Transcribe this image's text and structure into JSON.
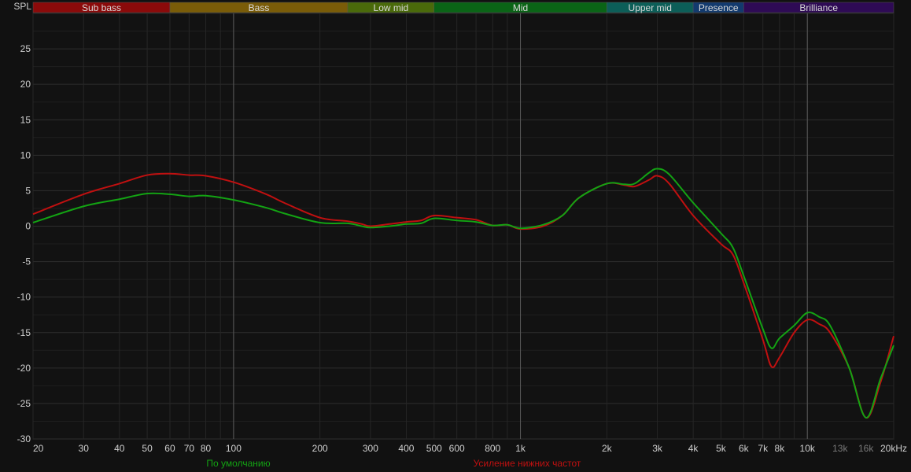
{
  "chart_data": {
    "type": "line",
    "ylabel": "SPL",
    "xscale": "log",
    "xlim": [
      20,
      20000
    ],
    "ylim": [
      -30,
      30
    ],
    "grid": true,
    "x_ticks": [
      {
        "v": 20,
        "label": "20"
      },
      {
        "v": 30,
        "label": "30"
      },
      {
        "v": 40,
        "label": "40"
      },
      {
        "v": 50,
        "label": "50"
      },
      {
        "v": 60,
        "label": "60"
      },
      {
        "v": 70,
        "label": "70"
      },
      {
        "v": 80,
        "label": "80"
      },
      {
        "v": 100,
        "label": "100"
      },
      {
        "v": 200,
        "label": "200"
      },
      {
        "v": 300,
        "label": "300"
      },
      {
        "v": 400,
        "label": "400"
      },
      {
        "v": 500,
        "label": "500"
      },
      {
        "v": 600,
        "label": "600"
      },
      {
        "v": 800,
        "label": "800"
      },
      {
        "v": 1000,
        "label": "1k"
      },
      {
        "v": 2000,
        "label": "2k"
      },
      {
        "v": 3000,
        "label": "3k"
      },
      {
        "v": 4000,
        "label": "4k"
      },
      {
        "v": 5000,
        "label": "5k"
      },
      {
        "v": 6000,
        "label": "6k"
      },
      {
        "v": 7000,
        "label": "7k"
      },
      {
        "v": 8000,
        "label": "8k"
      },
      {
        "v": 10000,
        "label": "10k"
      },
      {
        "v": 13000,
        "label": "13k",
        "dim": true
      },
      {
        "v": 16000,
        "label": "16k",
        "dim": true
      },
      {
        "v": 20000,
        "label": "20kHz"
      }
    ],
    "y_ticks": [
      25,
      20,
      15,
      10,
      5,
      0,
      -5,
      -10,
      -15,
      -20,
      -25,
      -30
    ],
    "bands": [
      {
        "label": "Sub bass",
        "from": 20,
        "to": 60,
        "color": "#8b0a0a"
      },
      {
        "label": "Bass",
        "from": 60,
        "to": 250,
        "color": "#7a5c08"
      },
      {
        "label": "Low mid",
        "from": 250,
        "to": 500,
        "color": "#4a6a0a"
      },
      {
        "label": "Mid",
        "from": 500,
        "to": 2000,
        "color": "#0a6416"
      },
      {
        "label": "Upper mid",
        "from": 2000,
        "to": 4000,
        "color": "#0c5e58"
      },
      {
        "label": "Presence",
        "from": 4000,
        "to": 6000,
        "color": "#123a6e"
      },
      {
        "label": "Brilliance",
        "from": 6000,
        "to": 20000,
        "color": "#2e0a55"
      }
    ],
    "x": [
      20,
      30,
      40,
      50,
      60,
      70,
      80,
      100,
      130,
      150,
      200,
      250,
      280,
      300,
      350,
      400,
      450,
      500,
      600,
      700,
      800,
      900,
      1000,
      1200,
      1400,
      1600,
      2000,
      2300,
      2500,
      2800,
      3000,
      3300,
      4000,
      5000,
      5500,
      6000,
      7000,
      7500,
      8000,
      9000,
      10000,
      11000,
      12000,
      14000,
      16000,
      18000,
      20000
    ],
    "series": [
      {
        "name": "По умолчанию",
        "color": "#13a313",
        "values": [
          0.5,
          2.8,
          3.8,
          4.6,
          4.5,
          4.2,
          4.3,
          3.7,
          2.6,
          1.8,
          0.5,
          0.4,
          0.0,
          -0.2,
          0.0,
          0.3,
          0.4,
          1.1,
          0.8,
          0.6,
          0.1,
          0.2,
          -0.3,
          0.2,
          1.5,
          4.0,
          6.0,
          5.9,
          6.0,
          7.5,
          8.1,
          7.3,
          3.3,
          -1.0,
          -3.0,
          -7.0,
          -14.5,
          -17.2,
          -15.8,
          -14.0,
          -12.2,
          -12.8,
          -14.0,
          -20.0,
          -27.0,
          -21.5,
          -16.8
        ]
      },
      {
        "name": "Усиление нижних частот",
        "color": "#c01010",
        "values": [
          1.7,
          4.5,
          6.0,
          7.2,
          7.4,
          7.2,
          7.1,
          6.2,
          4.5,
          3.3,
          1.2,
          0.7,
          0.3,
          0.0,
          0.3,
          0.6,
          0.8,
          1.5,
          1.2,
          0.9,
          0.1,
          0.2,
          -0.4,
          0.0,
          1.5,
          4.0,
          6.0,
          5.8,
          5.6,
          6.5,
          7.1,
          6.0,
          1.5,
          -2.5,
          -4.0,
          -8.0,
          -16.0,
          -19.8,
          -18.5,
          -15.0,
          -13.2,
          -13.8,
          -15.0,
          -20.0,
          -27.0,
          -22.0,
          -15.5
        ]
      }
    ]
  }
}
